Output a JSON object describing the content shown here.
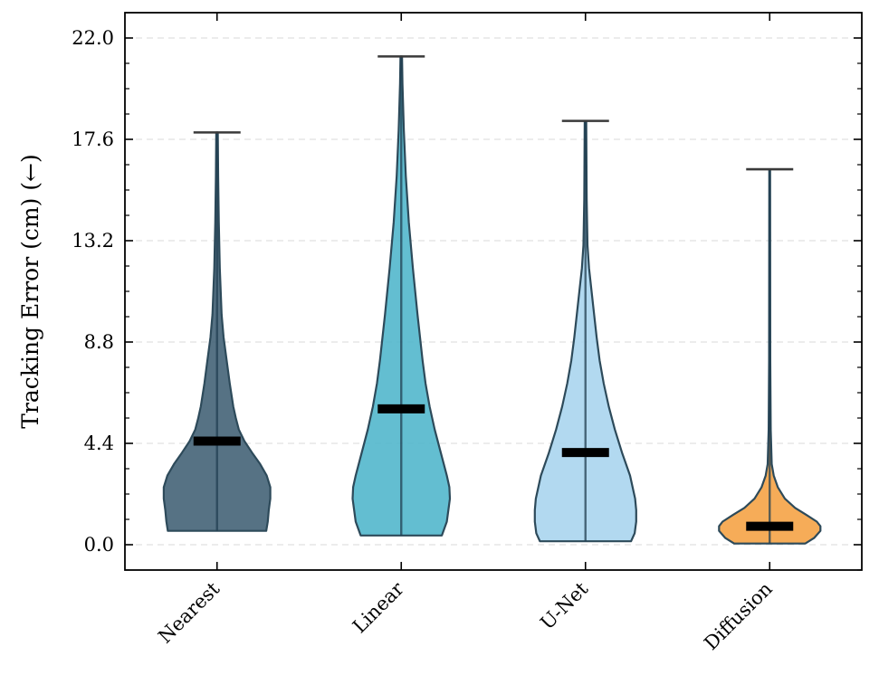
{
  "chart_data": {
    "type": "violin",
    "ylabel": "Tracking Error (cm) (←)",
    "ylim": [
      -1.1,
      23.1
    ],
    "yticks": [
      0.0,
      4.4,
      8.8,
      13.2,
      17.6,
      22.0
    ],
    "ytick_labels": [
      "0.0",
      "4.4",
      "8.8",
      "13.2",
      "17.6",
      "22.0"
    ],
    "grid": "horizontal dashed",
    "series": [
      {
        "name": "Nearest",
        "color": "#3f5e73",
        "min": 0.6,
        "max": 17.9,
        "median": 4.5,
        "density_profile": [
          [
            0.6,
            0.97
          ],
          [
            1.0,
            1.0
          ],
          [
            1.5,
            1.02
          ],
          [
            2.0,
            1.05
          ],
          [
            2.5,
            1.05
          ],
          [
            3.0,
            0.98
          ],
          [
            3.5,
            0.85
          ],
          [
            4.0,
            0.69
          ],
          [
            4.5,
            0.54
          ],
          [
            5.0,
            0.43
          ],
          [
            5.5,
            0.37
          ],
          [
            6.0,
            0.32
          ],
          [
            7.0,
            0.25
          ],
          [
            8.0,
            0.19
          ],
          [
            9.0,
            0.13
          ],
          [
            10.0,
            0.09
          ],
          [
            12.0,
            0.055
          ],
          [
            14.0,
            0.035
          ],
          [
            16.0,
            0.022
          ],
          [
            17.9,
            0.015
          ]
        ]
      },
      {
        "name": "Linear",
        "color": "#4db5cb",
        "min": 0.4,
        "max": 21.2,
        "median": 5.9,
        "density_profile": [
          [
            0.4,
            0.8
          ],
          [
            1.0,
            0.9
          ],
          [
            2.0,
            0.96
          ],
          [
            2.5,
            0.95
          ],
          [
            3.0,
            0.9
          ],
          [
            4.0,
            0.78
          ],
          [
            5.0,
            0.66
          ],
          [
            6.0,
            0.56
          ],
          [
            7.0,
            0.48
          ],
          [
            8.0,
            0.42
          ],
          [
            10.0,
            0.32
          ],
          [
            12.0,
            0.23
          ],
          [
            14.0,
            0.15
          ],
          [
            16.0,
            0.09
          ],
          [
            18.0,
            0.05
          ],
          [
            20.0,
            0.025
          ],
          [
            21.2,
            0.015
          ]
        ]
      },
      {
        "name": "U-Net",
        "color": "#a7d4ee",
        "min": 0.15,
        "max": 18.4,
        "median": 4.0,
        "density_profile": [
          [
            0.15,
            0.9
          ],
          [
            0.5,
            0.97
          ],
          [
            1.0,
            1.0
          ],
          [
            1.5,
            1.0
          ],
          [
            2.0,
            0.98
          ],
          [
            3.0,
            0.88
          ],
          [
            4.0,
            0.72
          ],
          [
            5.0,
            0.58
          ],
          [
            6.0,
            0.46
          ],
          [
            7.0,
            0.36
          ],
          [
            8.0,
            0.28
          ],
          [
            9.0,
            0.22
          ],
          [
            10.0,
            0.17
          ],
          [
            11.0,
            0.12
          ],
          [
            12.0,
            0.07
          ],
          [
            13.0,
            0.04
          ],
          [
            15.0,
            0.025
          ],
          [
            18.4,
            0.015
          ]
        ]
      },
      {
        "name": "Diffusion",
        "color": "#f5a041",
        "min": 0.05,
        "max": 16.3,
        "median": 0.8,
        "density_profile": [
          [
            0.05,
            0.7
          ],
          [
            0.3,
            0.88
          ],
          [
            0.6,
            1.0
          ],
          [
            0.8,
            1.0
          ],
          [
            1.0,
            0.93
          ],
          [
            1.3,
            0.72
          ],
          [
            1.6,
            0.5
          ],
          [
            2.0,
            0.3
          ],
          [
            2.5,
            0.16
          ],
          [
            3.0,
            0.08
          ],
          [
            3.5,
            0.04
          ],
          [
            5.0,
            0.02
          ],
          [
            8.0,
            0.012
          ],
          [
            12.0,
            0.01
          ],
          [
            16.3,
            0.008
          ]
        ]
      }
    ]
  }
}
